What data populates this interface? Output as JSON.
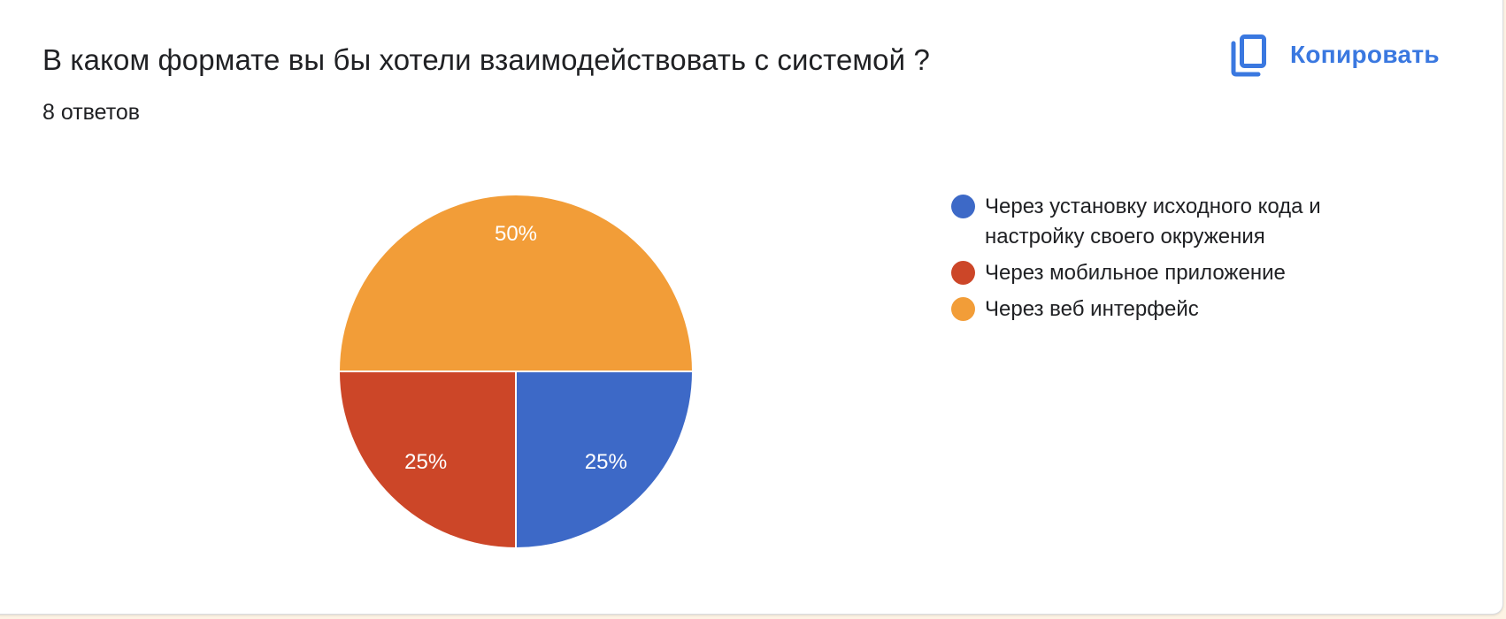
{
  "header": {
    "title": "В каком формате вы бы хотели взаимодействовать с системой ?",
    "responses": "8 ответов",
    "copy_button": {
      "label": "Копировать",
      "icon": "copy-icon",
      "color": "#3a78e0"
    }
  },
  "chart_data": {
    "type": "pie",
    "title": "В каком формате вы бы хотели взаимодействовать с системой ?",
    "subtitle": "8 ответов",
    "categories": [
      "Через установку исходного кода и настройку своего окружения",
      "Через мобильное приложение",
      "Через веб интерфейс"
    ],
    "values": [
      25,
      25,
      50
    ],
    "counts": [
      2,
      2,
      4
    ],
    "colors": [
      "#3d69c7",
      "#cc4628",
      "#f29d38"
    ],
    "labels": [
      "25%",
      "25%",
      "50%"
    ],
    "legend_position": "right",
    "start_angle_deg": 90,
    "direction": "clockwise"
  },
  "legend": {
    "items": [
      {
        "label": "Через установку исходного кода и настройку своего окружения",
        "color": "#3d69c7"
      },
      {
        "label": "Через мобильное приложение",
        "color": "#cc4628"
      },
      {
        "label": "Через веб интерфейс",
        "color": "#f29d38"
      }
    ]
  }
}
